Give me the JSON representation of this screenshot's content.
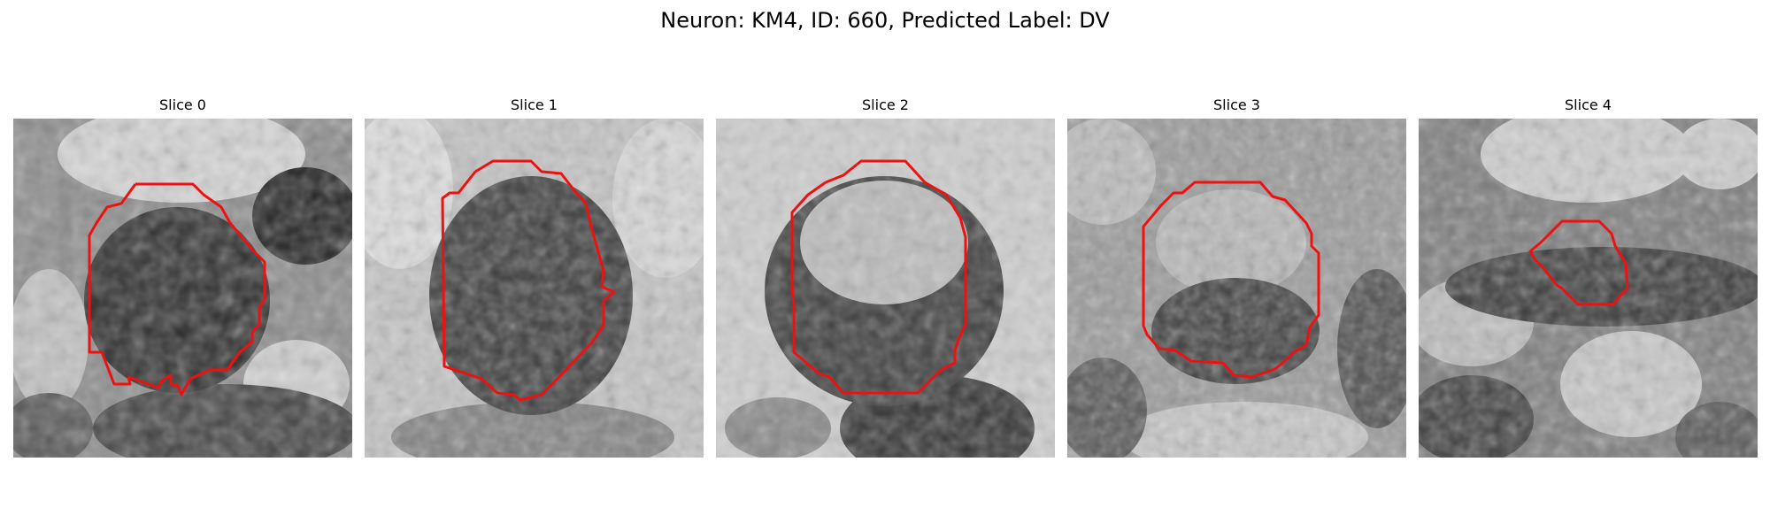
{
  "figure": {
    "title": "Neuron: KM4, ID: 660, Predicted Label: DV"
  },
  "panels": [
    {
      "title": "Slice 0"
    },
    {
      "title": "Slice 1"
    },
    {
      "title": "Slice 2"
    },
    {
      "title": "Slice 3"
    },
    {
      "title": "Slice 4"
    }
  ],
  "colors": {
    "contour": "#ee1111",
    "background": "#ffffff"
  }
}
